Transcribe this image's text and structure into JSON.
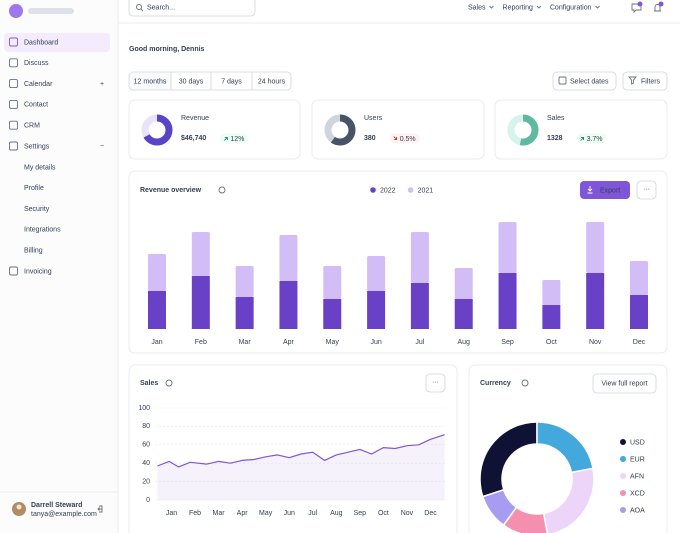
{
  "sidebar": {
    "nav": [
      "Dashboard",
      "Discuss",
      "Calendar",
      "Contact",
      "CRM",
      "Settings"
    ],
    "settings_items": [
      "My details",
      "Profile",
      "Security",
      "Integrations",
      "Billing"
    ],
    "nav_after": [
      "Invoicing"
    ],
    "user": {
      "name": "Darrell Steward",
      "email": "tanya@example.com"
    }
  },
  "topbar": {
    "search": "Search...",
    "menus": [
      "Sales",
      "Reporting",
      "Configuration"
    ]
  },
  "header": {
    "greeting": "Good morning, Dennis",
    "ranges": [
      "12 months",
      "30 days",
      "7 days",
      "24 hours"
    ],
    "buttons": [
      "Select dates",
      "Filters"
    ]
  },
  "kpis": [
    {
      "label": "Revenue",
      "value": "$46,740",
      "change": "12%"
    },
    {
      "label": "Users",
      "value": "380",
      "change": "0.5%"
    },
    {
      "label": "Sales",
      "value": "1328",
      "change": "3.7%"
    }
  ],
  "chart_data": [
    {
      "type": "bar",
      "title": "Revenue overview",
      "stacked": true,
      "button": "Export",
      "categories": [
        "Jan",
        "Feb",
        "Mar",
        "Apr",
        "May",
        "Jun",
        "Jul",
        "Aug",
        "Sep",
        "Oct",
        "Nov",
        "Dec"
      ],
      "series": [
        {
          "name": "2022",
          "color": "#6941c6",
          "values": [
            38,
            53,
            32,
            48,
            30,
            38,
            46,
            30,
            56,
            24,
            56,
            34
          ]
        },
        {
          "name": "2021",
          "color": "#d3bdf7",
          "values": [
            37,
            44,
            31,
            46,
            33,
            35,
            51,
            31,
            51,
            25,
            51,
            34
          ]
        }
      ],
      "ylim": [
        0,
        115
      ]
    },
    {
      "type": "line",
      "title": "Sales",
      "x": [
        -0.6,
        -0.1,
        0.3,
        0.8,
        1.5,
        2,
        2.5,
        3,
        3.5,
        4,
        4.5,
        5,
        5.5,
        6,
        6.5,
        7,
        7.5,
        8,
        8.5,
        9,
        9.5,
        10,
        10.5,
        11,
        11.6
      ],
      "series": [
        {
          "color": "#7f56d9",
          "values": [
            37,
            42,
            36,
            41,
            39,
            42,
            40,
            43,
            44,
            47,
            49,
            46,
            50,
            52,
            43,
            49,
            52,
            55,
            50,
            57,
            56,
            59,
            60,
            66,
            71
          ]
        }
      ],
      "xlim": [
        -0.7,
        11.7
      ],
      "xticks": [
        {
          "value": 0,
          "label": "Jan"
        },
        {
          "value": 1,
          "label": "Feb"
        },
        {
          "value": 2,
          "label": "Mar"
        },
        {
          "value": 3,
          "label": "Apr"
        },
        {
          "value": 4,
          "label": "May"
        },
        {
          "value": 5,
          "label": "Jun"
        },
        {
          "value": 6,
          "label": "Jul"
        },
        {
          "value": 7,
          "label": "Aug"
        },
        {
          "value": 8,
          "label": "Sep"
        },
        {
          "value": 9,
          "label": "Oct"
        },
        {
          "value": 10,
          "label": "Nov"
        },
        {
          "value": 11,
          "label": "Dec"
        }
      ],
      "ylim": [
        0,
        100
      ],
      "yticks": [
        0,
        20,
        40,
        60,
        80,
        100
      ],
      "grid": true
    },
    {
      "type": "pie",
      "title": "Currency",
      "donut": true,
      "button": "View full report",
      "categories": [
        "USD",
        "EUR",
        "AFN",
        "XCD",
        "AOA"
      ],
      "values": [
        30,
        22,
        25,
        13,
        10
      ],
      "colors": [
        "#101235",
        "#43a9dc",
        "#ecd5f9",
        "#f58fb0",
        "#a89cf2"
      ]
    }
  ]
}
